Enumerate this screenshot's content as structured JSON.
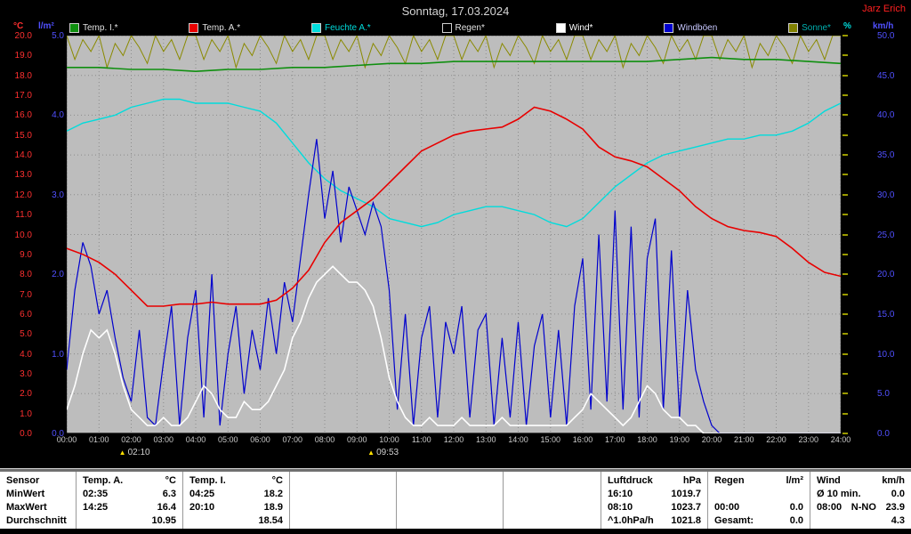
{
  "header": {
    "title": "Sonntag, 17.03.2024",
    "station": "Jarz Erich"
  },
  "axis_units": {
    "celsius": "°C",
    "rain": "l/m²",
    "humidity": "%",
    "wind": "km/h"
  },
  "legend": {
    "items": [
      {
        "label": "Temp. I.*",
        "color": "#0f8f0f",
        "label_color": "#e0e0e0"
      },
      {
        "label": "Temp. A.*",
        "color": "#e80000",
        "label_color": "#e0e0e0"
      },
      {
        "label": "Feuchte A.*",
        "color": "#00dcdc",
        "label_color": "#00dcdc"
      },
      {
        "label": "Regen*",
        "color": "#000000",
        "label_color": "#e0e0e0"
      },
      {
        "label": "Wind*",
        "color": "#ffffff",
        "label_color": "#ffffff"
      },
      {
        "label": "Windböen",
        "color": "#0000cd",
        "label_color": "#c8c8ff"
      },
      {
        "label": "Sonne*",
        "color": "#808000",
        "label_color": "#00b0b0"
      }
    ]
  },
  "annotations": [
    {
      "glyph": "▲",
      "time": "02:10",
      "x_h": 2.17
    },
    {
      "glyph": "▲",
      "time": "09:53",
      "x_h": 9.88
    }
  ],
  "chart_data": {
    "type": "line",
    "title": "Sonntag, 17.03.2024",
    "x_range_hours": [
      0,
      24
    ],
    "plot_bg": "#bdbdbd",
    "grid_color": "#8c8c8c",
    "x_ticks": [
      "00:00",
      "01:00",
      "02:00",
      "03:00",
      "04:00",
      "05:00",
      "06:00",
      "07:00",
      "08:00",
      "09:00",
      "10:00",
      "11:00",
      "12:00",
      "13:00",
      "14:00",
      "15:00",
      "16:00",
      "17:00",
      "18:00",
      "19:00",
      "20:00",
      "21:00",
      "22:00",
      "23:00",
      "24:00"
    ],
    "y_ticks_temp": [
      "20.0",
      "19.0",
      "18.0",
      "17.0",
      "16.0",
      "15.0",
      "14.0",
      "13.0",
      "12.0",
      "11.0",
      "10.0",
      "9.0",
      "8.0",
      "7.0",
      "6.0",
      "5.0",
      "4.0",
      "3.0",
      "2.0",
      "1.0",
      "0.0"
    ],
    "y_ticks_rain": [
      "5.0",
      "4.0",
      "3.0",
      "2.0",
      "1.0",
      "0.0"
    ],
    "y_ticks_wind": [
      "50.0",
      "45.0",
      "40.0",
      "35.0",
      "30.0",
      "25.0",
      "20.0",
      "15.0",
      "10.0",
      "5.0",
      "0.0"
    ],
    "axes": {
      "temp": [
        0,
        20
      ],
      "rain": [
        0,
        5
      ],
      "hum": [
        0,
        100
      ],
      "wind": [
        0,
        50
      ]
    },
    "series": [
      {
        "name": "sonne",
        "axis": "hum",
        "color": "#8a8a00",
        "step_h": 0.25,
        "width": 1,
        "values": [
          100,
          94,
          99,
          96,
          100,
          92,
          98,
          95,
          100,
          97,
          93,
          100,
          96,
          99,
          94,
          100,
          100,
          94,
          99,
          96,
          100,
          92,
          98,
          95,
          100,
          97,
          93,
          100,
          96,
          99,
          94,
          100,
          100,
          94,
          99,
          96,
          100,
          92,
          98,
          95,
          100,
          97,
          93,
          100,
          96,
          99,
          94,
          100,
          100,
          94,
          99,
          96,
          100,
          92,
          98,
          95,
          100,
          97,
          93,
          100,
          96,
          99,
          94,
          100,
          100,
          94,
          99,
          96,
          100,
          92,
          98,
          95,
          100,
          97,
          93,
          100,
          96,
          99,
          94,
          100,
          100,
          94,
          99,
          96,
          100,
          92,
          98,
          95,
          100,
          97,
          93,
          100,
          96,
          99,
          94,
          100,
          100
        ]
      },
      {
        "name": "feuchte_a",
        "axis": "hum",
        "color": "#00dcdc",
        "step_h": 0.5,
        "width": 1.4,
        "values": [
          76,
          78,
          79,
          80,
          82,
          83,
          84,
          84,
          83,
          83,
          83,
          82,
          81,
          78,
          73,
          68,
          64,
          61,
          59,
          57,
          54,
          53,
          52,
          53,
          55,
          56,
          57,
          57,
          56,
          55,
          53,
          52,
          54,
          58,
          62,
          65,
          68,
          70,
          71,
          72,
          73,
          74,
          74,
          75,
          75,
          76,
          78,
          81,
          83
        ]
      },
      {
        "name": "regen",
        "axis": "rain",
        "color": "#000000",
        "step_h": 1,
        "width": 1.2,
        "values": [
          0,
          0,
          0,
          0,
          0,
          0,
          0,
          0,
          0,
          0,
          0,
          0,
          0,
          0,
          0,
          0,
          0,
          0,
          0,
          0,
          0,
          0,
          0,
          0,
          0
        ]
      },
      {
        "name": "windboeen",
        "axis": "wind",
        "color": "#0000cd",
        "step_h": 0.25,
        "width": 1.2,
        "values": [
          8,
          18,
          24,
          21,
          15,
          18,
          12,
          7,
          4,
          13,
          2,
          1,
          9,
          16,
          1,
          12,
          18,
          2,
          20,
          1,
          10,
          16,
          5,
          13,
          8,
          17,
          10,
          19,
          14,
          22,
          30,
          37,
          27,
          33,
          24,
          31,
          28,
          25,
          29,
          26,
          18,
          3,
          15,
          1,
          12,
          16,
          2,
          14,
          10,
          16,
          2,
          13,
          15,
          1,
          12,
          2,
          14,
          1,
          11,
          15,
          2,
          13,
          1,
          16,
          22,
          3,
          25,
          4,
          28,
          3,
          26,
          2,
          22,
          27,
          3,
          23,
          2,
          18,
          8,
          4,
          1,
          0,
          0,
          0,
          0,
          0,
          0,
          0,
          0,
          0,
          0,
          0,
          0,
          0,
          0,
          0,
          0
        ]
      },
      {
        "name": "wind",
        "axis": "wind",
        "color": "#ffffff",
        "step_h": 0.25,
        "width": 1.6,
        "values": [
          3,
          6,
          10,
          13,
          12,
          13,
          10,
          6,
          3,
          2,
          1,
          1,
          2,
          1,
          1,
          2,
          4,
          6,
          5,
          3,
          2,
          2,
          4,
          3,
          3,
          4,
          6,
          8,
          12,
          14,
          17,
          19,
          20,
          21,
          20,
          19,
          19,
          18,
          16,
          12,
          7,
          4,
          2,
          1,
          1,
          2,
          1,
          1,
          1,
          2,
          1,
          1,
          1,
          1,
          2,
          1,
          1,
          1,
          1,
          1,
          1,
          1,
          1,
          2,
          3,
          5,
          4,
          3,
          2,
          1,
          2,
          4,
          6,
          5,
          3,
          2,
          2,
          1,
          1,
          0,
          0,
          0,
          0,
          0,
          0,
          0,
          0,
          0,
          0,
          0,
          0,
          0,
          0,
          0,
          0,
          0,
          0
        ]
      },
      {
        "name": "temp_a",
        "axis": "temp",
        "color": "#e80000",
        "step_h": 0.5,
        "width": 1.6,
        "values": [
          9.3,
          9.0,
          8.6,
          8.0,
          7.2,
          6.4,
          6.4,
          6.5,
          6.5,
          6.6,
          6.5,
          6.5,
          6.5,
          6.7,
          7.3,
          8.2,
          9.6,
          10.6,
          11.2,
          11.8,
          12.6,
          13.4,
          14.2,
          14.6,
          15.0,
          15.2,
          15.3,
          15.4,
          15.8,
          16.4,
          16.2,
          15.8,
          15.3,
          14.4,
          13.9,
          13.7,
          13.4,
          12.8,
          12.2,
          11.4,
          10.8,
          10.4,
          10.2,
          10.1,
          9.9,
          9.3,
          8.6,
          8.1,
          7.9
        ]
      },
      {
        "name": "temp_i",
        "axis": "temp",
        "color": "#0f8f0f",
        "step_h": 1,
        "width": 1.6,
        "values": [
          18.4,
          18.4,
          18.3,
          18.3,
          18.2,
          18.3,
          18.3,
          18.4,
          18.4,
          18.5,
          18.6,
          18.6,
          18.7,
          18.7,
          18.7,
          18.7,
          18.7,
          18.7,
          18.7,
          18.8,
          18.9,
          18.8,
          18.8,
          18.7,
          18.6
        ]
      }
    ]
  },
  "table": {
    "row_labels": {
      "sensor": "Sensor",
      "min": "MinWert",
      "max": "MaxWert",
      "avg": "Durchschnitt"
    },
    "temp_a": {
      "name": "Temp. A.",
      "unit": "°C",
      "min_time": "02:35",
      "min_val": "6.3",
      "max_time": "14:25",
      "max_val": "16.4",
      "avg": "10.95"
    },
    "temp_i": {
      "name": "Temp. I.",
      "unit": "°C",
      "min_time": "04:25",
      "min_val": "18.2",
      "max_time": "20:10",
      "max_val": "18.9",
      "avg": "18.54"
    },
    "luftdruck": {
      "name": "Luftdruck",
      "unit": "hPa",
      "min_time": "16:10",
      "min_val": "1019.7",
      "max_time": "08:10",
      "max_val": "1023.7",
      "trend": "^1.0hPa/h",
      "avg": "1021.8"
    },
    "regen": {
      "name": "Regen",
      "unit": "l/m²",
      "time": "00:00",
      "val": "0.0",
      "total_label": "Gesamt:",
      "total": "0.0"
    },
    "wind": {
      "name": "Wind",
      "unit": "km/h",
      "avg10_label": "Ø 10 min.",
      "avg10": "0.0",
      "max_time": "08:00",
      "max_dir": "N-NO",
      "max_val": "23.9",
      "avg": "4.3"
    }
  }
}
